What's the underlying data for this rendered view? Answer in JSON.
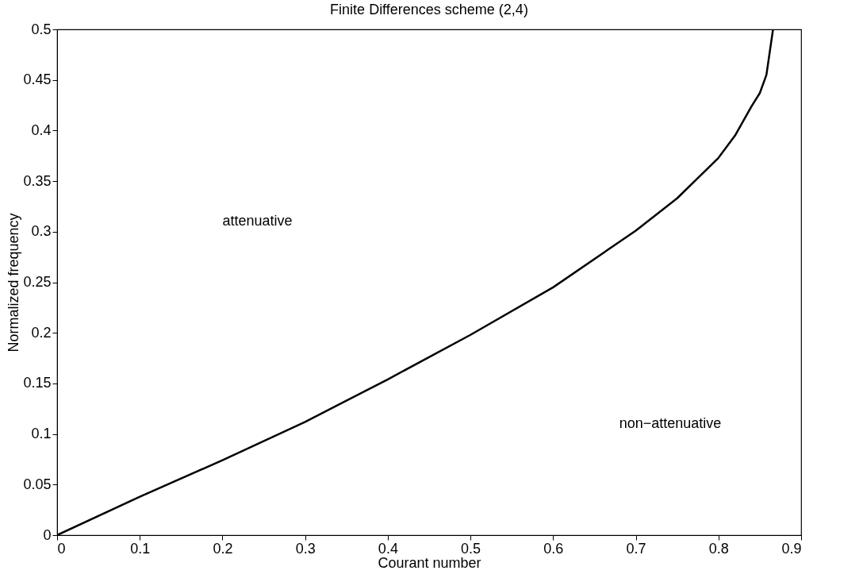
{
  "chart_data": {
    "type": "line",
    "title": "Finite Differences scheme (2,4)",
    "xlabel": "Courant number",
    "ylabel": "Normalized frequency",
    "x": [
      0,
      0.1,
      0.2,
      0.3,
      0.4,
      0.5,
      0.6,
      0.7,
      0.75,
      0.8,
      0.82,
      0.84,
      0.85,
      0.858,
      0.866
    ],
    "series": [
      {
        "color": "#000000",
        "values": [
          0,
          0.038,
          0.074,
          0.112,
          0.154,
          0.198,
          0.245,
          0.301,
          0.333,
          0.373,
          0.395,
          0.424,
          0.437,
          0.455,
          0.5
        ]
      }
    ],
    "xlim": [
      0,
      0.9
    ],
    "ylim": [
      0,
      0.5
    ],
    "xticks": [
      0,
      0.1,
      0.2,
      0.3,
      0.4,
      0.5,
      0.6,
      0.7,
      0.8,
      0.9
    ],
    "yticks": [
      0,
      0.05,
      0.1,
      0.15,
      0.2,
      0.25,
      0.3,
      0.35,
      0.4,
      0.45,
      0.5
    ],
    "annotations": [
      "attenuative",
      "non−attenuative"
    ],
    "grid": false,
    "marker": "none",
    "line_style": "solid"
  }
}
